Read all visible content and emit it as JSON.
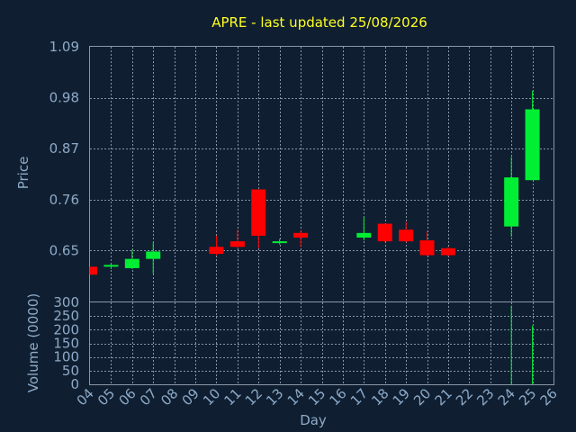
{
  "chart_data": {
    "type": "candlestick",
    "title": "APRE - last updated 25/08/2026",
    "xlabel": "Day",
    "ylabel_price": "Price",
    "ylabel_volume": "Volume (0000)",
    "x_ticks": [
      "04",
      "05",
      "06",
      "07",
      "08",
      "09",
      "10",
      "11",
      "12",
      "13",
      "14",
      "15",
      "16",
      "17",
      "18",
      "19",
      "20",
      "21",
      "22",
      "23",
      "24",
      "25",
      "26"
    ],
    "price_ticks": [
      "1.09",
      "0.98",
      "0.87",
      "0.76",
      "0.65"
    ],
    "price_tick_values": [
      1.09,
      0.98,
      0.87,
      0.76,
      0.65
    ],
    "volume_ticks": [
      "300",
      "250",
      "200",
      "150",
      "100",
      "50",
      "0"
    ],
    "volume_tick_values": [
      300,
      250,
      200,
      150,
      100,
      50,
      0
    ],
    "price_range": [
      0.54,
      1.09
    ],
    "volume_range": [
      0,
      300
    ],
    "x_range": [
      4,
      26
    ],
    "grid": true,
    "up_color": "#00ee33",
    "down_color": "#ff0000",
    "candles": [
      {
        "day": 4,
        "open": 0.615,
        "close": 0.598,
        "high": 0.615,
        "low": 0.598
      },
      {
        "day": 5,
        "open": 0.617,
        "close": 0.619,
        "high": 0.622,
        "low": 0.61
      },
      {
        "day": 6,
        "open": 0.612,
        "close": 0.632,
        "high": 0.652,
        "low": 0.61
      },
      {
        "day": 7,
        "open": 0.632,
        "close": 0.648,
        "high": 0.668,
        "low": 0.6
      },
      {
        "day": 10,
        "open": 0.658,
        "close": 0.643,
        "high": 0.682,
        "low": 0.64
      },
      {
        "day": 11,
        "open": 0.67,
        "close": 0.658,
        "high": 0.695,
        "low": 0.655
      },
      {
        "day": 12,
        "open": 0.782,
        "close": 0.682,
        "high": 0.782,
        "low": 0.655
      },
      {
        "day": 13,
        "open": 0.667,
        "close": 0.67,
        "high": 0.675,
        "low": 0.663
      },
      {
        "day": 14,
        "open": 0.688,
        "close": 0.678,
        "high": 0.693,
        "low": 0.658
      },
      {
        "day": 17,
        "open": 0.678,
        "close": 0.688,
        "high": 0.722,
        "low": 0.672
      },
      {
        "day": 18,
        "open": 0.708,
        "close": 0.67,
        "high": 0.708,
        "low": 0.668
      },
      {
        "day": 19,
        "open": 0.695,
        "close": 0.67,
        "high": 0.712,
        "low": 0.668
      },
      {
        "day": 20,
        "open": 0.672,
        "close": 0.64,
        "high": 0.692,
        "low": 0.638
      },
      {
        "day": 21,
        "open": 0.655,
        "close": 0.64,
        "high": 0.658,
        "low": 0.637
      },
      {
        "day": 24,
        "open": 0.702,
        "close": 0.808,
        "high": 0.852,
        "low": 0.68
      },
      {
        "day": 25,
        "open": 0.802,
        "close": 0.955,
        "high": 0.995,
        "low": 0.802
      }
    ],
    "volume": [
      {
        "day": 24,
        "value": 288
      },
      {
        "day": 25,
        "value": 215
      }
    ]
  }
}
